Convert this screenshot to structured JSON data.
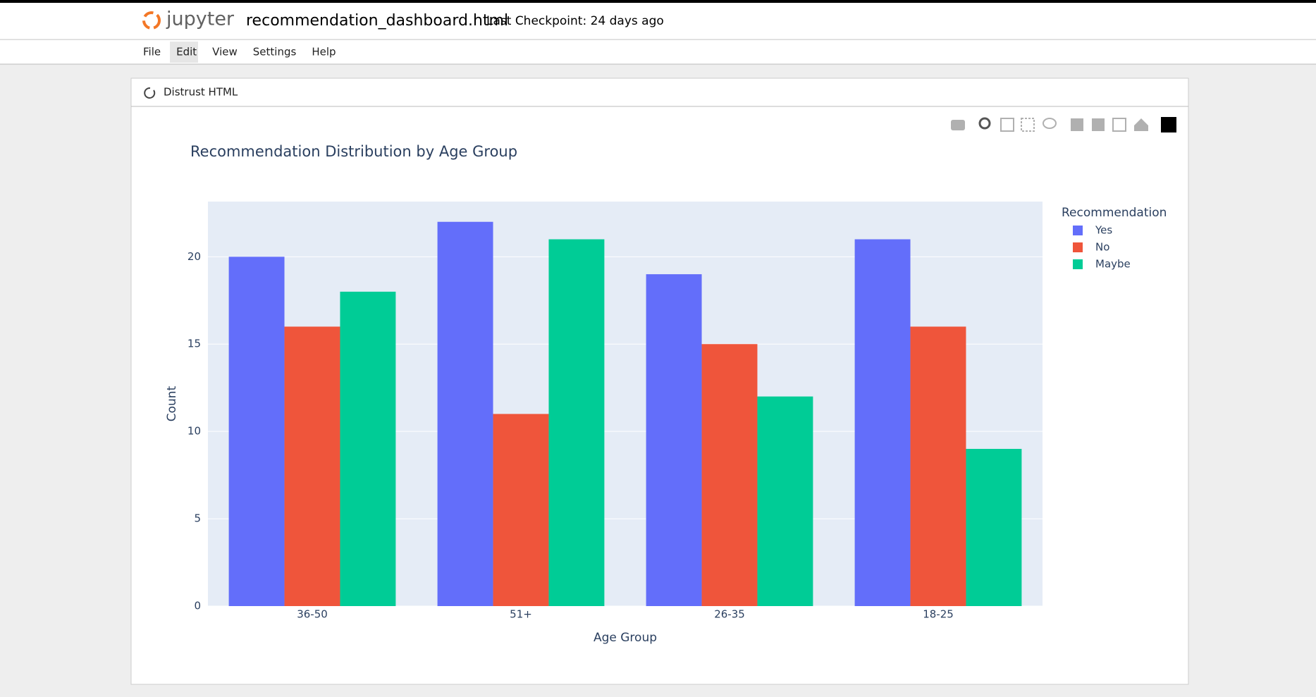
{
  "header": {
    "logo": "jupyter",
    "notebook_name": "recommendation_dashboard.html",
    "checkpoint": "Last Checkpoint: 24 days ago"
  },
  "menu": [
    "File",
    "Edit",
    "View",
    "Settings",
    "Help"
  ],
  "toolbar": {
    "button": "Distrust HTML"
  },
  "chart_data": {
    "type": "bar",
    "title": "Recommendation Distribution by Age Group",
    "x_label": "Age Group",
    "y_label": "Count",
    "legend_title": "Recommendation",
    "categories": [
      "36-50",
      "51+",
      "26-35",
      "18-25"
    ],
    "series": [
      {
        "name": "Yes",
        "color": "#636efa",
        "values": [
          20,
          22,
          19,
          21
        ]
      },
      {
        "name": "No",
        "color": "#ef553b",
        "values": [
          16,
          11,
          15,
          16
        ]
      },
      {
        "name": "Maybe",
        "color": "#00cc96",
        "values": [
          18,
          21,
          12,
          9
        ]
      }
    ],
    "ylim": [
      0,
      23.16
    ],
    "yticks": [
      0,
      5,
      10,
      15,
      20
    ],
    "grid": true,
    "legend": "right"
  }
}
